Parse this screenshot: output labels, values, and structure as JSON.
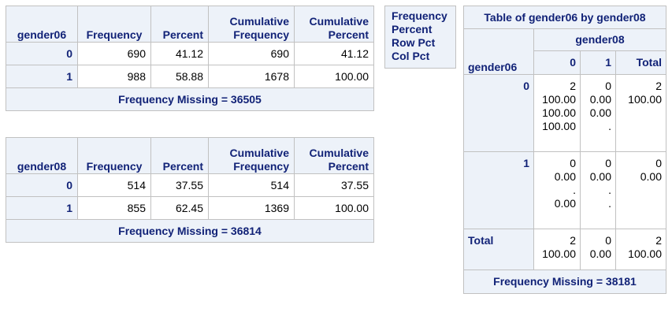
{
  "freq06": {
    "headers": [
      "gender06",
      "Frequency",
      "Percent",
      "Cumulative\nFrequency",
      "Cumulative\nPercent"
    ],
    "rows": [
      [
        "0",
        "690",
        "41.12",
        "690",
        "41.12"
      ],
      [
        "1",
        "988",
        "58.88",
        "1678",
        "100.00"
      ]
    ],
    "missing": "Frequency Missing = 36505"
  },
  "freq08": {
    "headers": [
      "gender08",
      "Frequency",
      "Percent",
      "Cumulative\nFrequency",
      "Cumulative\nPercent"
    ],
    "rows": [
      [
        "0",
        "514",
        "37.55",
        "514",
        "37.55"
      ],
      [
        "1",
        "855",
        "62.45",
        "1369",
        "100.00"
      ]
    ],
    "missing": "Frequency Missing = 36814"
  },
  "legend": {
    "lines": "Frequency\nPercent\nRow Pct\nCol Pct"
  },
  "crosstab": {
    "title": "Table of gender06 by gender08",
    "col_var": "gender08",
    "row_var": "gender06",
    "col_headers": [
      "0",
      "1",
      "Total"
    ],
    "rows": [
      {
        "label": "0",
        "cells": [
          "2\n100.00\n100.00\n100.00",
          "0\n0.00\n0.00\n.",
          "2\n100.00"
        ]
      },
      {
        "label": "1",
        "cells": [
          "0\n0.00\n.\n0.00",
          "0\n0.00\n.\n.",
          "0\n0.00"
        ]
      },
      {
        "label": "Total",
        "cells": [
          "2\n100.00",
          "0\n0.00",
          "2\n100.00"
        ]
      }
    ],
    "missing": "Frequency Missing = 38181"
  }
}
